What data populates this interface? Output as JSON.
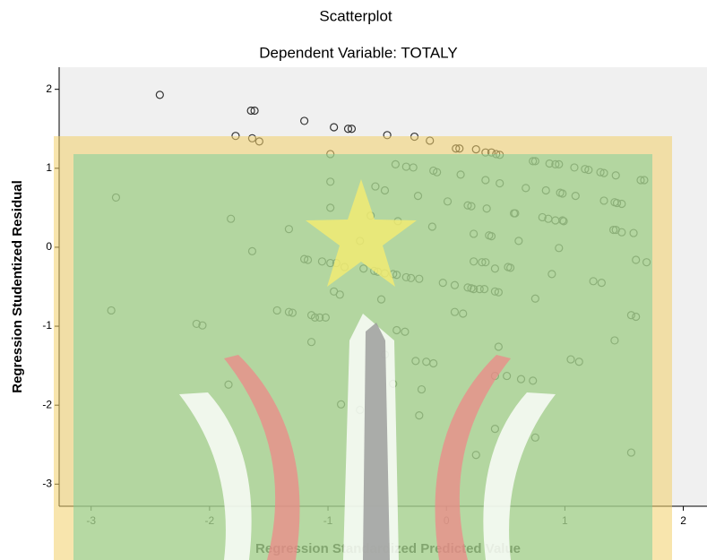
{
  "chart_data": {
    "type": "scatter",
    "title": "Scatterplot",
    "subtitle": "Dependent Variable: TOTALY",
    "x_label": "Regression Standardized Predicted Value",
    "y_label": "Regression Studentized Residual",
    "color": "#333333",
    "xlim": [
      -3.27,
      2.2
    ],
    "ylim": [
      -3.28,
      2.28
    ],
    "xticks": [
      -3,
      -2,
      -1,
      0,
      1,
      2
    ],
    "yticks": [
      -3,
      -2,
      -1,
      0,
      1,
      2
    ],
    "x": [
      -2.42,
      -1.65,
      -1.62,
      -1.2,
      -0.95,
      -0.83,
      -0.8,
      -0.5,
      -1.78,
      -1.64,
      -1.58,
      -0.27,
      -0.14,
      0.08,
      0.11,
      0.25,
      0.33,
      0.38,
      0.42,
      0.45,
      -0.98,
      0.73,
      0.75,
      0.87,
      0.92,
      0.95,
      1.08,
      1.17,
      1.2,
      1.3,
      1.33,
      1.43,
      -0.43,
      -0.34,
      -0.28,
      -0.11,
      -0.08,
      0.12,
      0.33,
      0.45,
      0.67,
      0.84,
      0.96,
      0.98,
      1.09,
      -0.98,
      -0.6,
      -0.52,
      -0.24,
      0.01,
      0.18,
      0.21,
      0.34,
      0.57,
      0.58,
      0.81,
      0.86,
      0.92,
      0.98,
      0.99,
      1.33,
      1.42,
      1.44,
      1.48,
      1.64,
      1.67,
      -2.79,
      -0.98,
      -1.82,
      -1.33,
      -0.41,
      -0.12,
      0.23,
      0.36,
      0.38,
      0.61,
      0.95,
      1.41,
      1.43,
      1.48,
      1.58,
      -0.73,
      -0.64,
      -1.64,
      -1.2,
      -1.17,
      -1.05,
      -0.98,
      -0.93,
      -0.86,
      -0.7,
      -0.61,
      -0.58,
      -0.52,
      -0.45,
      -0.42,
      -0.34,
      -0.3,
      -0.23,
      0.23,
      0.3,
      0.33,
      0.41,
      0.52,
      0.54,
      0.89,
      -0.03,
      0.07,
      0.18,
      0.21,
      0.23,
      0.28,
      0.32,
      0.41,
      0.44,
      -0.95,
      -0.9,
      -0.55,
      0.75,
      1.24,
      1.31,
      1.6,
      1.69,
      -1.43,
      -1.33,
      -1.3,
      -1.14,
      -1.11,
      -1.07,
      -1.02,
      0.07,
      0.14,
      1.56,
      1.6,
      -2.83,
      -2.11,
      -2.06,
      -0.42,
      -0.35,
      -1.14,
      0.44,
      1.42,
      -0.52,
      -0.26,
      -0.17,
      -0.11,
      1.05,
      1.12,
      0.41,
      0.51,
      0.63,
      0.73,
      -0.45,
      -1.84,
      -0.21,
      -0.89,
      -0.73,
      -0.23,
      0.41,
      0.75,
      0.25,
      1.56
    ],
    "values": [
      1.93,
      1.73,
      1.73,
      1.6,
      1.52,
      1.5,
      1.5,
      1.42,
      1.41,
      1.38,
      1.34,
      1.4,
      1.35,
      1.25,
      1.25,
      1.24,
      1.2,
      1.2,
      1.18,
      1.17,
      1.18,
      1.09,
      1.09,
      1.06,
      1.05,
      1.05,
      1.01,
      0.99,
      0.98,
      0.95,
      0.94,
      0.91,
      1.05,
      1.02,
      1.01,
      0.97,
      0.95,
      0.92,
      0.85,
      0.81,
      0.75,
      0.72,
      0.69,
      0.68,
      0.65,
      0.83,
      0.77,
      0.72,
      0.65,
      0.58,
      0.53,
      0.52,
      0.49,
      0.43,
      0.43,
      0.38,
      0.36,
      0.34,
      0.34,
      0.33,
      0.59,
      0.57,
      0.56,
      0.55,
      0.85,
      0.85,
      0.63,
      0.5,
      0.36,
      0.23,
      0.33,
      0.26,
      0.17,
      0.15,
      0.14,
      0.08,
      -0.01,
      0.22,
      0.22,
      0.19,
      0.18,
      0.08,
      0.4,
      -0.05,
      -0.15,
      -0.16,
      -0.18,
      -0.2,
      -0.2,
      -0.25,
      -0.27,
      -0.3,
      -0.31,
      -0.33,
      -0.34,
      -0.35,
      -0.38,
      -0.39,
      -0.4,
      -0.18,
      -0.19,
      -0.19,
      -0.27,
      -0.25,
      -0.26,
      -0.34,
      -0.45,
      -0.48,
      -0.51,
      -0.52,
      -0.53,
      -0.53,
      -0.53,
      -0.56,
      -0.57,
      -0.56,
      -0.6,
      -0.66,
      -0.65,
      -0.43,
      -0.45,
      -0.16,
      -0.19,
      -0.8,
      -0.82,
      -0.83,
      -0.86,
      -0.89,
      -0.89,
      -0.89,
      -0.82,
      -0.84,
      -0.86,
      -0.88,
      -0.8,
      -0.97,
      -0.99,
      -1.05,
      -1.07,
      -1.2,
      -1.26,
      -1.18,
      -1.36,
      -1.44,
      -1.45,
      -1.47,
      -1.42,
      -1.45,
      -1.63,
      -1.63,
      -1.67,
      -1.69,
      -1.73,
      -1.74,
      -1.8,
      -1.99,
      -2.06,
      -2.13,
      -2.3,
      -2.41,
      -2.63,
      -2.6
    ]
  }
}
